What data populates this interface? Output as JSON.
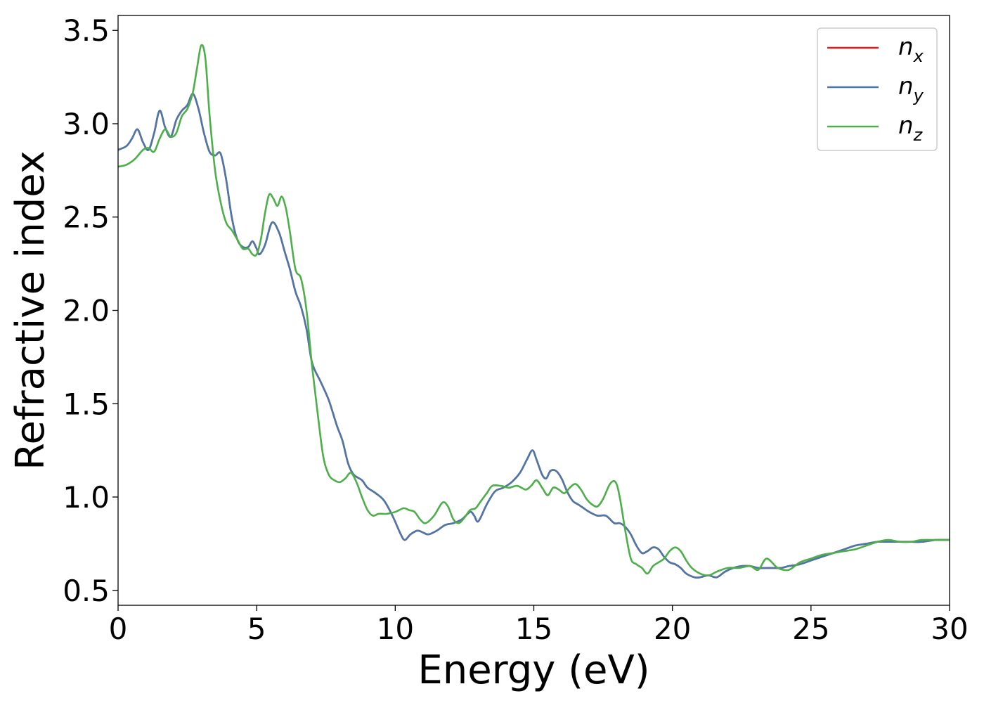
{
  "chart_data": {
    "type": "line",
    "xlabel": "Energy (eV)",
    "ylabel": "Refractive index",
    "xlim": [
      0,
      30
    ],
    "ylim": [
      0.42,
      3.58
    ],
    "x_ticks": [
      "0",
      "5",
      "10",
      "15",
      "20",
      "25",
      "30"
    ],
    "x_tick_values": [
      0,
      5,
      10,
      15,
      20,
      25,
      30
    ],
    "y_ticks": [
      "0.5",
      "1.0",
      "1.5",
      "2.0",
      "2.5",
      "3.0",
      "3.5"
    ],
    "y_tick_values": [
      0.5,
      1.0,
      1.5,
      2.0,
      2.5,
      3.0,
      3.5
    ],
    "grid": false,
    "legend_position": "top-right",
    "series": [
      {
        "name": "n",
        "sub": "x",
        "color": "#e41a1c",
        "x": [
          0,
          0.3,
          0.5,
          0.7,
          0.9,
          1.1,
          1.3,
          1.5,
          1.7,
          1.9,
          2.1,
          2.3,
          2.5,
          2.7,
          2.9,
          3.1,
          3.3,
          3.5,
          3.7,
          3.9,
          4.1,
          4.3,
          4.5,
          4.7,
          4.85,
          5.0,
          5.1,
          5.3,
          5.55,
          5.8,
          6.0,
          6.2,
          6.4,
          6.6,
          6.8,
          7.0,
          7.3,
          7.6,
          7.9,
          8.1,
          8.3,
          8.5,
          8.8,
          9.0,
          9.3,
          9.6,
          9.9,
          10.2,
          10.35,
          10.55,
          10.8,
          11.0,
          11.2,
          11.5,
          11.8,
          12.1,
          12.4,
          12.7,
          12.85,
          13.0,
          13.3,
          13.6,
          13.9,
          14.2,
          14.5,
          14.75,
          14.95,
          15.1,
          15.3,
          15.45,
          15.6,
          15.8,
          16.0,
          16.2,
          16.4,
          16.6,
          16.8,
          17.0,
          17.3,
          17.6,
          17.9,
          18.1,
          18.3,
          18.5,
          18.7,
          18.9,
          19.1,
          19.3,
          19.5,
          19.7,
          19.9,
          20.1,
          20.3,
          20.5,
          20.8,
          21.0,
          21.3,
          21.6,
          21.9,
          22.2,
          22.5,
          22.8,
          23.1,
          23.5,
          23.9,
          24.2,
          24.6,
          25.0,
          25.4,
          25.8,
          26.2,
          26.6,
          27.0,
          27.4,
          27.8,
          28.2,
          28.6,
          29.0,
          29.5,
          30.0
        ],
        "y": [
          2.86,
          2.88,
          2.92,
          2.97,
          2.9,
          2.86,
          2.95,
          3.07,
          2.98,
          2.93,
          3.02,
          3.07,
          3.1,
          3.16,
          3.08,
          2.95,
          2.85,
          2.83,
          2.84,
          2.7,
          2.5,
          2.38,
          2.34,
          2.34,
          2.37,
          2.33,
          2.3,
          2.35,
          2.47,
          2.42,
          2.32,
          2.22,
          2.1,
          2.02,
          1.9,
          1.72,
          1.62,
          1.52,
          1.38,
          1.3,
          1.18,
          1.12,
          1.09,
          1.05,
          1.02,
          0.98,
          0.9,
          0.8,
          0.77,
          0.8,
          0.82,
          0.81,
          0.8,
          0.82,
          0.85,
          0.86,
          0.88,
          0.92,
          0.9,
          0.87,
          0.96,
          1.03,
          1.05,
          1.08,
          1.13,
          1.2,
          1.25,
          1.2,
          1.12,
          1.1,
          1.14,
          1.14,
          1.1,
          1.03,
          0.98,
          0.96,
          0.94,
          0.92,
          0.9,
          0.9,
          0.86,
          0.86,
          0.84,
          0.8,
          0.74,
          0.7,
          0.71,
          0.73,
          0.72,
          0.68,
          0.65,
          0.64,
          0.62,
          0.59,
          0.57,
          0.57,
          0.58,
          0.57,
          0.6,
          0.62,
          0.63,
          0.63,
          0.62,
          0.62,
          0.62,
          0.63,
          0.64,
          0.66,
          0.68,
          0.7,
          0.72,
          0.74,
          0.75,
          0.76,
          0.76,
          0.76,
          0.76,
          0.76,
          0.77,
          0.77
        ]
      },
      {
        "name": "n",
        "sub": "y",
        "color": "#4a78aa",
        "x": [
          0,
          0.3,
          0.5,
          0.7,
          0.9,
          1.1,
          1.3,
          1.5,
          1.7,
          1.9,
          2.1,
          2.3,
          2.5,
          2.7,
          2.9,
          3.1,
          3.3,
          3.5,
          3.7,
          3.9,
          4.1,
          4.3,
          4.5,
          4.7,
          4.85,
          5.0,
          5.1,
          5.3,
          5.55,
          5.8,
          6.0,
          6.2,
          6.4,
          6.6,
          6.8,
          7.0,
          7.3,
          7.6,
          7.9,
          8.1,
          8.3,
          8.5,
          8.8,
          9.0,
          9.3,
          9.6,
          9.9,
          10.2,
          10.35,
          10.55,
          10.8,
          11.0,
          11.2,
          11.5,
          11.8,
          12.1,
          12.4,
          12.7,
          12.85,
          13.0,
          13.3,
          13.6,
          13.9,
          14.2,
          14.5,
          14.75,
          14.95,
          15.1,
          15.3,
          15.45,
          15.6,
          15.8,
          16.0,
          16.2,
          16.4,
          16.6,
          16.8,
          17.0,
          17.3,
          17.6,
          17.9,
          18.1,
          18.3,
          18.5,
          18.7,
          18.9,
          19.1,
          19.3,
          19.5,
          19.7,
          19.9,
          20.1,
          20.3,
          20.5,
          20.8,
          21.0,
          21.3,
          21.6,
          21.9,
          22.2,
          22.5,
          22.8,
          23.1,
          23.5,
          23.9,
          24.2,
          24.6,
          25.0,
          25.4,
          25.8,
          26.2,
          26.6,
          27.0,
          27.4,
          27.8,
          28.2,
          28.6,
          29.0,
          29.5,
          30.0
        ],
        "y": [
          2.86,
          2.88,
          2.92,
          2.97,
          2.9,
          2.86,
          2.95,
          3.07,
          2.98,
          2.93,
          3.02,
          3.07,
          3.1,
          3.16,
          3.08,
          2.95,
          2.85,
          2.83,
          2.84,
          2.7,
          2.5,
          2.38,
          2.34,
          2.34,
          2.37,
          2.33,
          2.3,
          2.35,
          2.47,
          2.42,
          2.32,
          2.22,
          2.1,
          2.02,
          1.9,
          1.72,
          1.62,
          1.52,
          1.38,
          1.3,
          1.18,
          1.12,
          1.09,
          1.05,
          1.02,
          0.98,
          0.9,
          0.8,
          0.77,
          0.8,
          0.82,
          0.81,
          0.8,
          0.82,
          0.85,
          0.86,
          0.88,
          0.92,
          0.9,
          0.87,
          0.96,
          1.03,
          1.05,
          1.08,
          1.13,
          1.2,
          1.25,
          1.2,
          1.12,
          1.1,
          1.14,
          1.14,
          1.1,
          1.03,
          0.98,
          0.96,
          0.94,
          0.92,
          0.9,
          0.9,
          0.86,
          0.86,
          0.84,
          0.8,
          0.74,
          0.7,
          0.71,
          0.73,
          0.72,
          0.68,
          0.65,
          0.64,
          0.62,
          0.59,
          0.57,
          0.57,
          0.58,
          0.57,
          0.6,
          0.62,
          0.63,
          0.63,
          0.62,
          0.62,
          0.62,
          0.63,
          0.64,
          0.66,
          0.68,
          0.7,
          0.72,
          0.74,
          0.75,
          0.76,
          0.76,
          0.76,
          0.76,
          0.76,
          0.77,
          0.77
        ]
      },
      {
        "name": "n",
        "sub": "z",
        "color": "#4daf4a",
        "x": [
          0,
          0.3,
          0.6,
          0.9,
          1.1,
          1.3,
          1.5,
          1.7,
          1.9,
          2.1,
          2.3,
          2.5,
          2.7,
          2.85,
          3.0,
          3.15,
          3.3,
          3.5,
          3.7,
          3.9,
          4.1,
          4.3,
          4.5,
          4.7,
          4.85,
          5.0,
          5.15,
          5.3,
          5.45,
          5.6,
          5.75,
          5.9,
          6.05,
          6.2,
          6.4,
          6.6,
          6.8,
          7.0,
          7.2,
          7.4,
          7.6,
          7.8,
          8.0,
          8.2,
          8.4,
          8.6,
          8.8,
          9.0,
          9.2,
          9.4,
          9.7,
          10.0,
          10.3,
          10.5,
          10.7,
          10.9,
          11.1,
          11.4,
          11.7,
          11.9,
          12.1,
          12.3,
          12.5,
          12.7,
          12.9,
          13.1,
          13.3,
          13.5,
          13.8,
          14.1,
          14.4,
          14.7,
          14.9,
          15.1,
          15.3,
          15.5,
          15.7,
          15.9,
          16.1,
          16.3,
          16.5,
          16.7,
          16.9,
          17.1,
          17.3,
          17.5,
          17.75,
          17.95,
          18.1,
          18.3,
          18.5,
          18.7,
          18.9,
          19.1,
          19.3,
          19.5,
          19.7,
          19.9,
          20.1,
          20.3,
          20.5,
          20.7,
          21.0,
          21.3,
          21.6,
          22.0,
          22.4,
          22.8,
          23.1,
          23.4,
          23.8,
          24.2,
          24.6,
          25.0,
          25.4,
          25.8,
          26.2,
          26.6,
          27.0,
          27.4,
          27.8,
          28.2,
          28.6,
          29.0,
          29.5,
          30.0
        ],
        "y": [
          2.77,
          2.78,
          2.81,
          2.86,
          2.87,
          2.85,
          2.92,
          2.97,
          2.93,
          2.95,
          3.04,
          3.08,
          3.17,
          3.3,
          3.42,
          3.35,
          3.05,
          2.75,
          2.58,
          2.47,
          2.43,
          2.38,
          2.33,
          2.33,
          2.3,
          2.3,
          2.38,
          2.52,
          2.62,
          2.6,
          2.56,
          2.61,
          2.55,
          2.42,
          2.22,
          2.17,
          2.0,
          1.7,
          1.45,
          1.22,
          1.12,
          1.09,
          1.08,
          1.1,
          1.13,
          1.08,
          1.0,
          0.93,
          0.9,
          0.91,
          0.91,
          0.92,
          0.94,
          0.93,
          0.92,
          0.88,
          0.86,
          0.9,
          0.97,
          0.95,
          0.88,
          0.86,
          0.89,
          0.93,
          0.94,
          0.98,
          1.02,
          1.06,
          1.06,
          1.05,
          1.06,
          1.04,
          1.06,
          1.09,
          1.05,
          1.01,
          1.05,
          1.04,
          1.02,
          1.05,
          1.07,
          1.04,
          0.99,
          0.96,
          0.95,
          0.99,
          1.07,
          1.08,
          1.0,
          0.82,
          0.67,
          0.64,
          0.62,
          0.59,
          0.63,
          0.65,
          0.67,
          0.71,
          0.73,
          0.71,
          0.66,
          0.62,
          0.59,
          0.58,
          0.6,
          0.62,
          0.62,
          0.63,
          0.61,
          0.67,
          0.62,
          0.61,
          0.65,
          0.67,
          0.69,
          0.7,
          0.71,
          0.72,
          0.74,
          0.76,
          0.77,
          0.76,
          0.76,
          0.77,
          0.77,
          0.77
        ]
      }
    ]
  }
}
